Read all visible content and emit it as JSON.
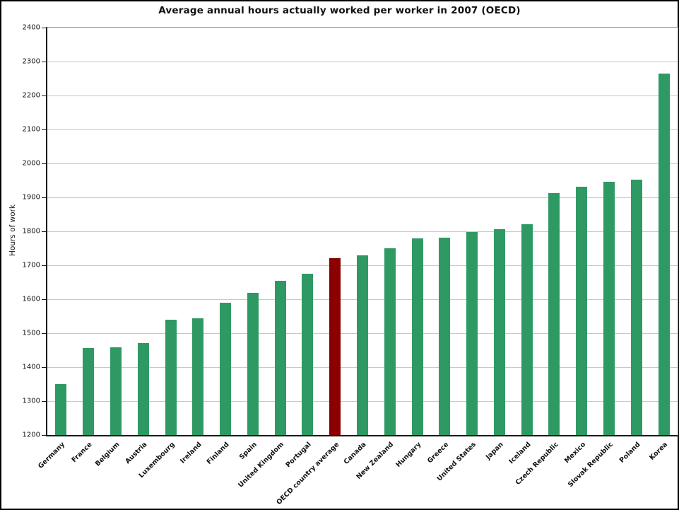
{
  "chart_data": {
    "type": "bar",
    "title": "Average annual hours actually worked per worker in 2007 (OECD)",
    "xlabel": "",
    "ylabel": "Hours of work",
    "ylim": [
      1200,
      2400
    ],
    "ytick_step": 100,
    "grid": "horizontal",
    "legend": "none",
    "categories": [
      "Germany",
      "France",
      "Belgium",
      "Austria",
      "Luxembourg",
      "Ireland",
      "Finland",
      "Spain",
      "United Kingdom",
      "Portugal",
      "OECD country average",
      "Canada",
      "New Zealand",
      "Hungary",
      "Greece",
      "United States",
      "Japan",
      "Iceland",
      "Czech Republic",
      "Mexico",
      "Slovak Republic",
      "Poland",
      "Korea"
    ],
    "values": [
      1350,
      1456,
      1459,
      1471,
      1539,
      1544,
      1590,
      1619,
      1654,
      1675,
      1720,
      1729,
      1749,
      1779,
      1781,
      1797,
      1807,
      1820,
      1912,
      1932,
      1946,
      1953,
      2265
    ],
    "highlight_category": "OECD country average",
    "highlight_index": 10,
    "bar_color": "#2f9963",
    "highlight_color": "#8b0000",
    "grid_color": "#c8c8c8",
    "axis_color": "#1a1a1a",
    "frame_color": "#8c8c8c"
  }
}
